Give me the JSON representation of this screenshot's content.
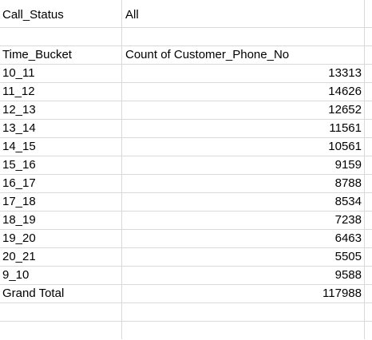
{
  "pivot": {
    "filter": {
      "field": "Call_Status",
      "value": "All"
    },
    "headers": {
      "row_label": "Time_Bucket",
      "value_label": "Count of Customer_Phone_No"
    },
    "rows": [
      {
        "label": "10_11",
        "value": "13313"
      },
      {
        "label": "11_12",
        "value": "14626"
      },
      {
        "label": "12_13",
        "value": "12652"
      },
      {
        "label": "13_14",
        "value": "11561"
      },
      {
        "label": "14_15",
        "value": "10561"
      },
      {
        "label": "15_16",
        "value": "9159"
      },
      {
        "label": "16_17",
        "value": "8788"
      },
      {
        "label": "17_18",
        "value": "8534"
      },
      {
        "label": "18_19",
        "value": "7238"
      },
      {
        "label": "19_20",
        "value": "6463"
      },
      {
        "label": "20_21",
        "value": "5505"
      },
      {
        "label": "9_10",
        "value": "9588"
      }
    ],
    "grand_total": {
      "label": "Grand Total",
      "value": "117988"
    }
  },
  "colors": {
    "gridline": "#d9d9d9",
    "text": "#000000",
    "background": "#ffffff"
  }
}
